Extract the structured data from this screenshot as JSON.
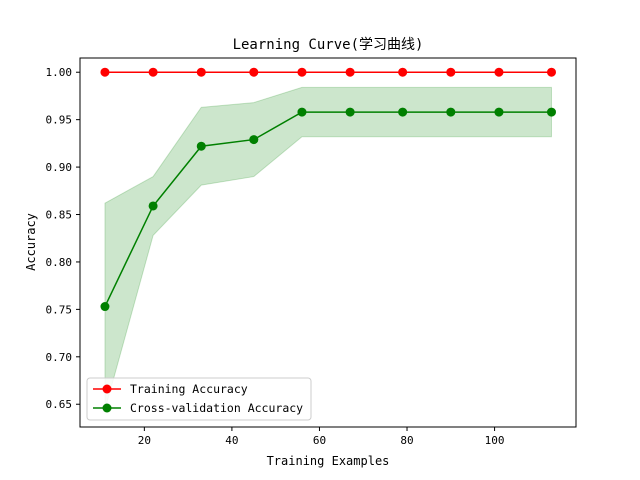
{
  "chart_data": {
    "type": "line",
    "title": "Learning Curve(学习曲线)",
    "xlabel": "Training Examples",
    "ylabel": "Accuracy",
    "xlim": [
      5.3,
      118.6
    ],
    "ylim": [
      0.626,
      1.015
    ],
    "xticks": [
      20,
      40,
      60,
      80,
      100
    ],
    "yticks": [
      0.65,
      0.7,
      0.75,
      0.8,
      0.85,
      0.9,
      0.95,
      1.0
    ],
    "grid": false,
    "legend_position": "lower-left",
    "x": [
      11,
      22,
      33,
      45,
      56,
      67,
      79,
      90,
      101,
      113
    ],
    "series": [
      {
        "name": "Training Accuracy",
        "color": "#ff0000",
        "marker": "circle",
        "values": [
          1.0,
          1.0,
          1.0,
          1.0,
          1.0,
          1.0,
          1.0,
          1.0,
          1.0,
          1.0
        ],
        "band_lower": [
          1.0,
          1.0,
          1.0,
          1.0,
          1.0,
          1.0,
          1.0,
          1.0,
          1.0,
          1.0
        ],
        "band_upper": [
          1.0,
          1.0,
          1.0,
          1.0,
          1.0,
          1.0,
          1.0,
          1.0,
          1.0,
          1.0
        ],
        "band_color": "#ff0000"
      },
      {
        "name": "Cross-validation Accuracy",
        "color": "#008000",
        "marker": "circle",
        "values": [
          0.753,
          0.859,
          0.922,
          0.929,
          0.958,
          0.958,
          0.958,
          0.958,
          0.958,
          0.958
        ],
        "band_lower": [
          0.644,
          0.828,
          0.881,
          0.89,
          0.932,
          0.932,
          0.932,
          0.932,
          0.932,
          0.932
        ],
        "band_upper": [
          0.862,
          0.89,
          0.963,
          0.968,
          0.984,
          0.984,
          0.984,
          0.984,
          0.984,
          0.984
        ],
        "band_color": "#008000"
      }
    ]
  }
}
